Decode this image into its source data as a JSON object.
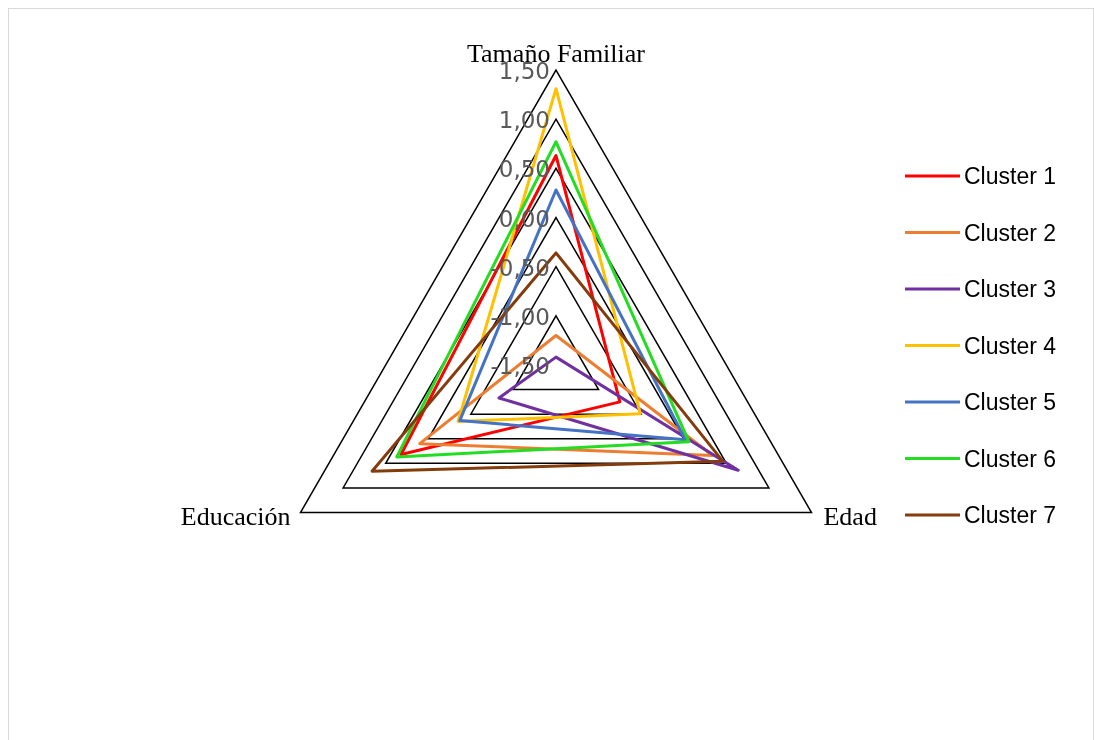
{
  "chart_data": {
    "type": "radar",
    "categories": [
      "Tamaño Familiar",
      "Edad",
      "Educación"
    ],
    "ylim": [
      -1.5,
      1.5
    ],
    "yticks": [
      {
        "value": 1.5,
        "label": "1,50"
      },
      {
        "value": 1.0,
        "label": "1,00"
      },
      {
        "value": 0.5,
        "label": "0,50"
      },
      {
        "value": 0,
        "label": "0,00"
      },
      {
        "value": -0.5,
        "label": "-0,50"
      },
      {
        "value": -1.0,
        "label": "-1,00"
      },
      {
        "value": -1.5,
        "label": "-1,50"
      }
    ],
    "grid": true,
    "legend": "right",
    "series": [
      {
        "name": "Cluster 1",
        "color": "#ff0000",
        "values": [
          0.63,
          -0.75,
          0.32
        ]
      },
      {
        "name": "Cluster 2",
        "color": "#ed7d31",
        "values": [
          -1.2,
          0.34,
          0.1
        ]
      },
      {
        "name": "Cluster 3",
        "color": "#7030a0",
        "values": [
          -1.42,
          0.64,
          -0.83
        ]
      },
      {
        "name": "Cluster 4",
        "color": "#ffc000",
        "values": [
          1.31,
          -0.51,
          -0.35
        ]
      },
      {
        "name": "Cluster 5",
        "color": "#4472c4",
        "values": [
          0.28,
          0.02,
          -0.37
        ]
      },
      {
        "name": "Cluster 6",
        "color": "#22dd22",
        "values": [
          0.77,
          0.06,
          0.37
        ]
      },
      {
        "name": "Cluster 7",
        "color": "#843c0c",
        "values": [
          -0.36,
          0.46,
          0.66
        ]
      }
    ]
  }
}
